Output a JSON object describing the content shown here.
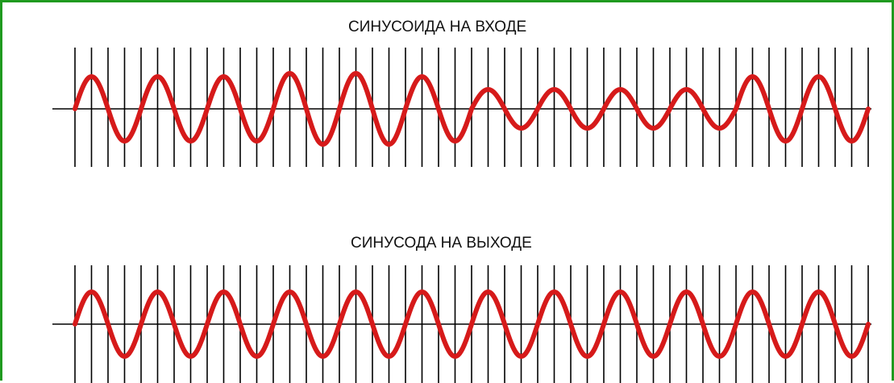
{
  "panels": {
    "input": {
      "title": "СИНУСОИДА НА ВХОДЕ",
      "cycles": 12,
      "amplitudes": [
        1.0,
        1.0,
        1.0,
        1.1,
        1.1,
        1.0,
        0.6,
        0.6,
        0.6,
        0.6,
        1.0,
        1.0
      ]
    },
    "output": {
      "title": "СИНУСОДА НА ВЫХОДЕ",
      "cycles": 12,
      "amplitudes": [
        1.0,
        1.0,
        1.0,
        1.0,
        1.0,
        1.0,
        1.0,
        1.0,
        1.0,
        1.0,
        1.0,
        1.0
      ]
    }
  },
  "sample_lines_count": 49,
  "colors": {
    "frame": "#1f9a1f",
    "wave": "#d61a1a",
    "grid": "#000000",
    "background": "#ffffff"
  }
}
